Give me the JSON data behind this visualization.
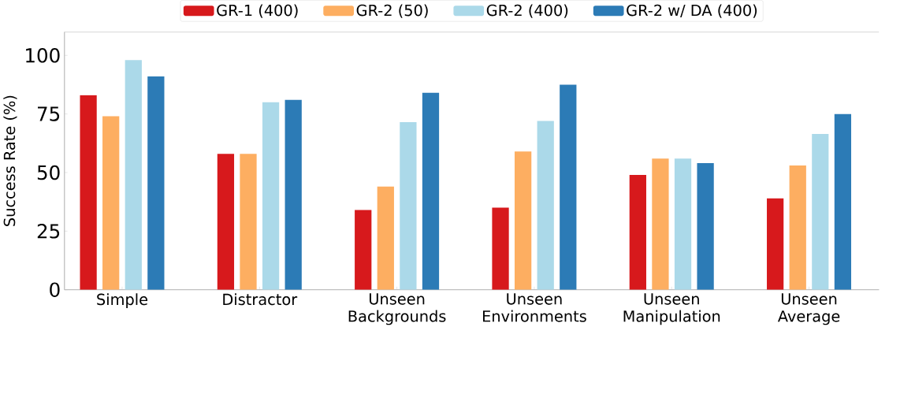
{
  "chart_data": {
    "type": "bar",
    "ylabel": "Success Rate (%)",
    "categories": [
      "Simple",
      "Distractor",
      "Unseen Backgrounds",
      "Unseen Environments",
      "Unseen Manipulation",
      "Unseen Average"
    ],
    "series": [
      {
        "name": "GR-1 (400)",
        "color": "#d7191c",
        "values": [
          83,
          58,
          34,
          35,
          49,
          39
        ]
      },
      {
        "name": "GR-2 (50)",
        "color": "#fdae61",
        "values": [
          74,
          58,
          44,
          59,
          56,
          53
        ]
      },
      {
        "name": "GR-2 (400)",
        "color": "#abd9e9",
        "values": [
          98,
          80,
          71.5,
          72,
          56,
          66.5
        ]
      },
      {
        "name": "GR-2 w/ DA (400)",
        "color": "#2c7bb6",
        "values": [
          91,
          81,
          84,
          87.5,
          54,
          75
        ]
      }
    ],
    "ylim": [
      0,
      110
    ],
    "yticks": [
      0,
      25,
      50,
      75,
      100
    ],
    "legend": "top"
  }
}
